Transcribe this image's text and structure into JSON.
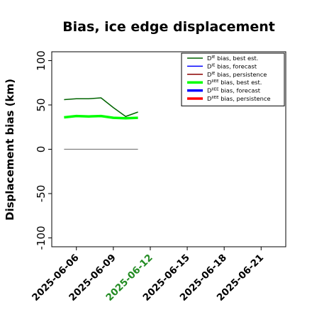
{
  "chart_data": {
    "type": "line",
    "title": "Bias, ice edge displacement",
    "ylabel": "Displacement bias (km)",
    "xlabel": "",
    "ylim": [
      -110,
      110
    ],
    "xlim": [
      "2025-06-04",
      "2025-06-23"
    ],
    "y_ticks": [
      -100,
      -50,
      0,
      50,
      100
    ],
    "x_ticks": [
      "2025-06-06",
      "2025-06-09",
      "2025-06-12",
      "2025-06-15",
      "2025-06-18",
      "2025-06-21"
    ],
    "highlight_tick": "2025-06-12",
    "highlight_color": "#228b22",
    "grid": false,
    "legend_position": "top-right",
    "series": [
      {
        "name": "bias, best est.",
        "sup": "IE",
        "color": "#006400",
        "width": 1.5,
        "x": [
          "2025-06-05",
          "2025-06-06",
          "2025-06-07",
          "2025-06-08",
          "2025-06-09",
          "2025-06-10",
          "2025-06-11"
        ],
        "y": [
          56,
          57,
          57,
          58,
          47,
          37,
          42
        ]
      },
      {
        "name": "bias, forecast",
        "sup": "IE",
        "color": "#0000ff",
        "width": 1.5,
        "x": [],
        "y": []
      },
      {
        "name": "bias, persistence",
        "sup": "IE",
        "color": "#8b0000",
        "width": 1.5,
        "x": [],
        "y": []
      },
      {
        "name": "bias, best est.",
        "sup": "IIEE",
        "color": "#00ff00",
        "width": 3.5,
        "x": [
          "2025-06-05",
          "2025-06-06",
          "2025-06-07",
          "2025-06-08",
          "2025-06-09",
          "2025-06-10",
          "2025-06-11"
        ],
        "y": [
          36,
          37.5,
          37,
          37.5,
          35.5,
          35,
          35.5
        ]
      },
      {
        "name": "bias, forecast",
        "sup": "IIEE",
        "color": "#0000ff",
        "width": 3.5,
        "x": [],
        "y": []
      },
      {
        "name": "bias, persistence",
        "sup": "IIEE",
        "color": "#ff0000",
        "width": 3.5,
        "x": [],
        "y": []
      }
    ],
    "reference_line": {
      "color": "#808080",
      "x": [
        "2025-06-05",
        "2025-06-11"
      ],
      "y": [
        0,
        0
      ]
    },
    "legend_label_prefix": "D"
  }
}
